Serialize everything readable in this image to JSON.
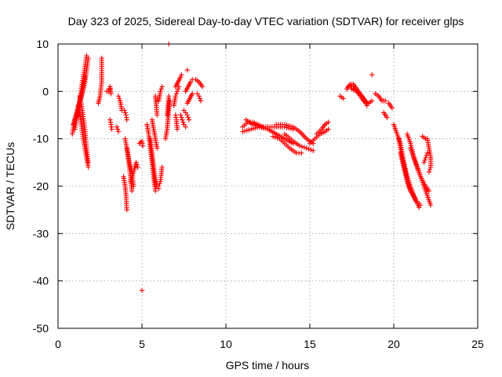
{
  "chart_data": {
    "type": "scatter",
    "title": "Day 323 of 2025, Sidereal Day-to-day VTEC variation (SDTVAR) for receiver glps",
    "xlabel": "GPS time / hours",
    "ylabel": "SDTVAR / TECUs",
    "xlim": [
      0,
      25
    ],
    "ylim": [
      -50,
      10
    ],
    "xticks": [
      0,
      5,
      10,
      15,
      20,
      25
    ],
    "yticks": [
      -50,
      -40,
      -30,
      -20,
      -10,
      0,
      10
    ],
    "xtick_labels": [
      "0",
      "5",
      "10",
      "15",
      "20",
      "25"
    ],
    "ytick_labels": [
      "-50",
      "-40",
      "-30",
      "-20",
      "-10",
      "0",
      "10"
    ],
    "grid": true,
    "marker": "+",
    "color": "#ff0000",
    "arcs": [
      {
        "points": [
          [
            0.85,
            -9
          ],
          [
            1.0,
            -6
          ],
          [
            1.15,
            -4
          ],
          [
            1.3,
            -2
          ],
          [
            1.45,
            0
          ],
          [
            1.6,
            3
          ]
        ]
      },
      {
        "points": [
          [
            0.9,
            -7
          ],
          [
            1.1,
            -5
          ],
          [
            1.25,
            -3
          ],
          [
            1.4,
            1
          ],
          [
            1.55,
            4
          ],
          [
            1.7,
            7.5
          ]
        ]
      },
      {
        "points": [
          [
            1.0,
            -8
          ],
          [
            1.2,
            -4
          ],
          [
            1.4,
            -1
          ],
          [
            1.6,
            2
          ],
          [
            1.8,
            7
          ]
        ]
      },
      {
        "points": [
          [
            1.2,
            -3
          ],
          [
            1.35,
            -6
          ],
          [
            1.5,
            -10
          ],
          [
            1.65,
            -13
          ],
          [
            1.8,
            -16
          ]
        ]
      },
      {
        "points": [
          [
            1.3,
            -1
          ],
          [
            1.45,
            -4
          ],
          [
            1.6,
            -8
          ],
          [
            1.7,
            -12
          ],
          [
            1.8,
            -15
          ]
        ]
      },
      {
        "points": [
          [
            2.4,
            -2.5
          ],
          [
            2.5,
            -1
          ],
          [
            2.6,
            2
          ],
          [
            2.6,
            4
          ],
          [
            2.6,
            7
          ]
        ]
      },
      {
        "points": [
          [
            2.9,
            0
          ],
          [
            3.0,
            0
          ],
          [
            3.1,
            1
          ],
          [
            3.15,
            -0.5
          ]
        ]
      },
      {
        "points": [
          [
            3.1,
            -6
          ],
          [
            3.15,
            -7
          ],
          [
            3.2,
            -8
          ]
        ]
      },
      {
        "points": [
          [
            3.6,
            -1
          ],
          [
            3.7,
            -2
          ],
          [
            3.8,
            -4
          ]
        ]
      },
      {
        "points": [
          [
            3.5,
            -7.5
          ],
          [
            3.6,
            -8.5
          ]
        ]
      },
      {
        "points": [
          [
            3.95,
            -4
          ],
          [
            4.05,
            -5
          ],
          [
            4.1,
            -6
          ]
        ]
      },
      {
        "points": [
          [
            3.9,
            -18
          ],
          [
            4.0,
            -20
          ],
          [
            4.05,
            -22
          ],
          [
            4.1,
            -25
          ]
        ]
      },
      {
        "points": [
          [
            4.0,
            -10
          ],
          [
            4.15,
            -13
          ],
          [
            4.25,
            -16
          ],
          [
            4.35,
            -19
          ],
          [
            4.4,
            -21
          ]
        ]
      },
      {
        "points": [
          [
            4.1,
            -12
          ],
          [
            4.25,
            -15
          ],
          [
            4.4,
            -17
          ],
          [
            4.5,
            -20
          ]
        ]
      },
      {
        "points": [
          [
            4.3,
            -19
          ],
          [
            4.5,
            -17
          ],
          [
            4.65,
            -15
          ],
          [
            4.75,
            -16
          ]
        ]
      },
      {
        "points": [
          [
            4.85,
            -11
          ],
          [
            5.0,
            -10.5
          ],
          [
            5.05,
            -11.5
          ]
        ]
      },
      {
        "points": [
          [
            5.0,
            -42
          ]
        ]
      },
      {
        "points": [
          [
            5.3,
            -7
          ],
          [
            5.4,
            -9
          ],
          [
            5.5,
            -12
          ],
          [
            5.6,
            -15
          ],
          [
            5.7,
            -18
          ],
          [
            5.8,
            -21
          ]
        ]
      },
      {
        "points": [
          [
            5.5,
            -10
          ],
          [
            5.6,
            -13
          ],
          [
            5.7,
            -16
          ],
          [
            5.8,
            -19
          ],
          [
            5.9,
            -20
          ],
          [
            6.0,
            -20.5
          ]
        ]
      },
      {
        "points": [
          [
            5.7,
            -18
          ],
          [
            5.85,
            -20
          ],
          [
            6.0,
            -20
          ],
          [
            6.1,
            -19
          ],
          [
            6.2,
            -16
          ]
        ]
      },
      {
        "points": [
          [
            5.6,
            -6
          ],
          [
            5.7,
            -8
          ],
          [
            5.8,
            -10
          ],
          [
            5.9,
            -12
          ]
        ]
      },
      {
        "points": [
          [
            5.8,
            -1
          ],
          [
            5.85,
            -3
          ],
          [
            5.9,
            -5
          ]
        ]
      },
      {
        "points": [
          [
            6.0,
            -2
          ],
          [
            6.1,
            0
          ],
          [
            6.2,
            1
          ]
        ]
      },
      {
        "points": [
          [
            6.4,
            -10
          ],
          [
            6.5,
            -8
          ],
          [
            6.55,
            -6
          ],
          [
            6.6,
            -4
          ],
          [
            6.65,
            -2
          ]
        ]
      },
      {
        "points": [
          [
            6.5,
            -5
          ],
          [
            6.55,
            -3
          ],
          [
            6.6,
            -1
          ]
        ]
      },
      {
        "points": [
          [
            6.6,
            10
          ]
        ]
      },
      {
        "points": [
          [
            6.9,
            -3
          ],
          [
            7.0,
            -1
          ],
          [
            7.1,
            0
          ],
          [
            7.2,
            1
          ]
        ]
      },
      {
        "points": [
          [
            7.0,
            -5
          ],
          [
            7.05,
            -6
          ],
          [
            7.1,
            -8
          ]
        ]
      },
      {
        "points": [
          [
            7.0,
            1
          ],
          [
            7.15,
            2
          ],
          [
            7.3,
            3
          ],
          [
            7.35,
            3.5
          ]
        ]
      },
      {
        "points": [
          [
            7.3,
            -5
          ],
          [
            7.4,
            -6
          ],
          [
            7.5,
            -7
          ],
          [
            7.6,
            -7.5
          ]
        ]
      },
      {
        "points": [
          [
            7.5,
            -4
          ],
          [
            7.6,
            -4.5
          ],
          [
            7.7,
            -5
          ],
          [
            7.8,
            -6
          ]
        ]
      },
      {
        "points": [
          [
            7.7,
            4.5
          ]
        ]
      },
      {
        "points": [
          [
            7.6,
            0
          ],
          [
            7.75,
            1
          ],
          [
            7.9,
            2
          ],
          [
            8.0,
            2.5
          ]
        ]
      },
      {
        "points": [
          [
            7.7,
            -2.5
          ],
          [
            7.85,
            -1.5
          ],
          [
            8.0,
            -0.5
          ]
        ]
      },
      {
        "points": [
          [
            8.3,
            -0.5
          ],
          [
            8.4,
            -1
          ],
          [
            8.5,
            -2
          ]
        ]
      },
      {
        "points": [
          [
            8.2,
            2.5
          ],
          [
            8.4,
            2
          ],
          [
            8.6,
            1
          ]
        ]
      },
      {
        "points": [
          [
            11.0,
            -7.5
          ],
          [
            11.3,
            -6.5
          ],
          [
            11.6,
            -6.5
          ],
          [
            11.9,
            -7
          ],
          [
            12.2,
            -7.5
          ]
        ]
      },
      {
        "points": [
          [
            11.0,
            -8.5
          ],
          [
            11.5,
            -8
          ],
          [
            12.0,
            -7.5
          ],
          [
            12.5,
            -7.5
          ],
          [
            13.0,
            -7.5
          ],
          [
            13.5,
            -7.5
          ],
          [
            14.0,
            -8
          ]
        ]
      },
      {
        "points": [
          [
            11.2,
            -6
          ],
          [
            11.6,
            -7
          ],
          [
            12.0,
            -7.5
          ],
          [
            12.5,
            -8
          ],
          [
            13.0,
            -9
          ],
          [
            13.5,
            -10
          ],
          [
            14.0,
            -11
          ]
        ]
      },
      {
        "points": [
          [
            12.8,
            -9.5
          ],
          [
            13.2,
            -10
          ],
          [
            13.5,
            -11
          ],
          [
            13.8,
            -12
          ],
          [
            14.2,
            -13
          ],
          [
            14.5,
            -13
          ]
        ]
      },
      {
        "points": [
          [
            13.0,
            -7
          ],
          [
            13.5,
            -7
          ],
          [
            14.0,
            -7.5
          ],
          [
            14.4,
            -8.5
          ],
          [
            14.8,
            -10
          ],
          [
            15.2,
            -11
          ]
        ]
      },
      {
        "points": [
          [
            13.5,
            -9
          ],
          [
            14.0,
            -10.5
          ],
          [
            14.4,
            -11.5
          ],
          [
            14.8,
            -12
          ],
          [
            15.2,
            -12.5
          ]
        ]
      },
      {
        "points": [
          [
            15.0,
            -11
          ],
          [
            15.3,
            -10
          ],
          [
            15.6,
            -9
          ],
          [
            15.9,
            -8.5
          ],
          [
            16.1,
            -8
          ]
        ]
      },
      {
        "points": [
          [
            15.4,
            -9
          ],
          [
            15.7,
            -8
          ],
          [
            15.9,
            -7
          ],
          [
            16.1,
            -6.5
          ]
        ]
      },
      {
        "points": [
          [
            16.8,
            -1
          ],
          [
            17.0,
            -1.5
          ]
        ]
      },
      {
        "points": [
          [
            17.2,
            0.5
          ],
          [
            17.4,
            1.5
          ],
          [
            17.6,
            1.5
          ],
          [
            17.8,
            0.5
          ],
          [
            18.0,
            -0.5
          ],
          [
            18.2,
            -1.5
          ],
          [
            18.4,
            -3
          ]
        ]
      },
      {
        "points": [
          [
            17.3,
            1
          ],
          [
            17.6,
            1
          ],
          [
            17.9,
            -0.5
          ],
          [
            18.2,
            -2
          ],
          [
            18.5,
            -2.5
          ],
          [
            18.7,
            -2
          ]
        ]
      },
      {
        "points": [
          [
            17.5,
            0.5
          ],
          [
            17.8,
            0
          ],
          [
            18.1,
            -1
          ],
          [
            18.4,
            -2.5
          ]
        ]
      },
      {
        "points": [
          [
            18.7,
            3.5
          ]
        ]
      },
      {
        "points": [
          [
            18.9,
            -0.5
          ],
          [
            19.1,
            -1
          ],
          [
            19.3,
            -2
          ],
          [
            19.5,
            -2
          ]
        ]
      },
      {
        "points": [
          [
            19.7,
            -2.5
          ],
          [
            19.9,
            -3.5
          ]
        ]
      },
      {
        "points": [
          [
            19.4,
            -4.5
          ],
          [
            19.6,
            -5.5
          ]
        ]
      },
      {
        "points": [
          [
            20.0,
            -7
          ],
          [
            20.2,
            -9
          ],
          [
            20.4,
            -11
          ],
          [
            20.6,
            -15
          ],
          [
            20.8,
            -18
          ],
          [
            21.0,
            -20
          ],
          [
            21.2,
            -22
          ],
          [
            21.5,
            -24.5
          ]
        ]
      },
      {
        "points": [
          [
            20.4,
            -13
          ],
          [
            20.6,
            -16
          ],
          [
            20.8,
            -19
          ],
          [
            21.0,
            -21
          ],
          [
            21.3,
            -23
          ],
          [
            21.6,
            -24
          ]
        ]
      },
      {
        "points": [
          [
            20.3,
            -10
          ],
          [
            20.5,
            -14
          ],
          [
            20.7,
            -17
          ],
          [
            20.9,
            -20
          ],
          [
            21.1,
            -21.5
          ],
          [
            21.3,
            -23
          ]
        ]
      },
      {
        "points": [
          [
            20.8,
            -9
          ],
          [
            21.0,
            -11
          ],
          [
            21.2,
            -14
          ],
          [
            21.4,
            -16
          ],
          [
            21.6,
            -18
          ],
          [
            21.8,
            -20
          ],
          [
            22.0,
            -22
          ],
          [
            22.2,
            -24
          ]
        ]
      },
      {
        "points": [
          [
            21.0,
            -12
          ],
          [
            21.3,
            -15
          ],
          [
            21.6,
            -18
          ],
          [
            21.9,
            -20
          ],
          [
            22.1,
            -21
          ]
        ]
      },
      {
        "points": [
          [
            21.7,
            -9.5
          ],
          [
            21.9,
            -10
          ]
        ]
      },
      {
        "points": [
          [
            22.0,
            -10
          ],
          [
            22.1,
            -12
          ],
          [
            22.2,
            -14
          ],
          [
            22.2,
            -16
          ],
          [
            22.1,
            -17
          ]
        ]
      },
      {
        "points": [
          [
            21.8,
            -15
          ],
          [
            21.9,
            -14
          ],
          [
            22.0,
            -13
          ]
        ]
      }
    ]
  }
}
